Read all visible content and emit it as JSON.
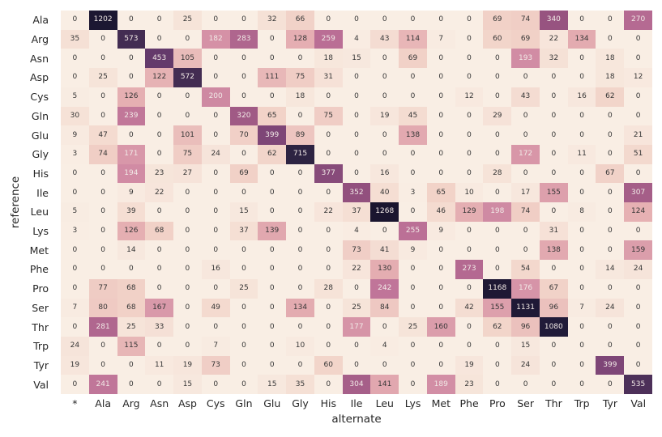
{
  "figure": {
    "background": "#ffffff"
  },
  "chart_data": {
    "type": "heatmap",
    "title": "",
    "xlabel": "alternate",
    "ylabel": "reference",
    "legend_position": "none",
    "grid": false,
    "annotated": true,
    "vmin": 0,
    "vmax": 1268,
    "x_categories": [
      "*",
      "Ala",
      "Arg",
      "Asn",
      "Asp",
      "Cys",
      "Gln",
      "Glu",
      "Gly",
      "His",
      "Ile",
      "Leu",
      "Lys",
      "Met",
      "Phe",
      "Pro",
      "Ser",
      "Thr",
      "Trp",
      "Tyr",
      "Val"
    ],
    "y_categories": [
      "Ala",
      "Arg",
      "Asn",
      "Asp",
      "Cys",
      "Gln",
      "Glu",
      "Gly",
      "His",
      "Ile",
      "Leu",
      "Lys",
      "Met",
      "Phe",
      "Pro",
      "Ser",
      "Thr",
      "Trp",
      "Tyr",
      "Val"
    ],
    "values": [
      [
        0,
        1202,
        0,
        0,
        25,
        0,
        0,
        32,
        66,
        0,
        0,
        0,
        0,
        0,
        0,
        69,
        74,
        340,
        0,
        0,
        270
      ],
      [
        35,
        0,
        573,
        0,
        0,
        182,
        283,
        0,
        128,
        259,
        4,
        43,
        114,
        7,
        0,
        60,
        69,
        22,
        134,
        0,
        0
      ],
      [
        0,
        0,
        0,
        453,
        105,
        0,
        0,
        0,
        0,
        18,
        15,
        0,
        69,
        0,
        0,
        0,
        193,
        32,
        0,
        18,
        0
      ],
      [
        0,
        25,
        0,
        122,
        572,
        0,
        0,
        111,
        75,
        31,
        0,
        0,
        0,
        0,
        0,
        0,
        0,
        0,
        0,
        18,
        12
      ],
      [
        5,
        0,
        126,
        0,
        0,
        200,
        0,
        0,
        18,
        0,
        0,
        0,
        0,
        0,
        12,
        0,
        43,
        0,
        16,
        62,
        0
      ],
      [
        30,
        0,
        239,
        0,
        0,
        0,
        320,
        65,
        0,
        75,
        0,
        19,
        45,
        0,
        0,
        29,
        0,
        0,
        0,
        0,
        0
      ],
      [
        9,
        47,
        0,
        0,
        101,
        0,
        70,
        399,
        89,
        0,
        0,
        0,
        138,
        0,
        0,
        0,
        0,
        0,
        0,
        0,
        21
      ],
      [
        3,
        74,
        171,
        0,
        75,
        24,
        0,
        62,
        715,
        0,
        0,
        0,
        0,
        0,
        0,
        0,
        172,
        0,
        11,
        0,
        51
      ],
      [
        0,
        0,
        194,
        23,
        27,
        0,
        69,
        0,
        0,
        377,
        0,
        16,
        0,
        0,
        0,
        28,
        0,
        0,
        0,
        67,
        0
      ],
      [
        0,
        0,
        9,
        22,
        0,
        0,
        0,
        0,
        0,
        0,
        352,
        40,
        3,
        65,
        10,
        0,
        17,
        155,
        0,
        0,
        307
      ],
      [
        5,
        0,
        39,
        0,
        0,
        0,
        15,
        0,
        0,
        22,
        37,
        1268,
        0,
        46,
        129,
        198,
        74,
        0,
        8,
        0,
        124
      ],
      [
        3,
        0,
        126,
        68,
        0,
        0,
        37,
        139,
        0,
        0,
        4,
        0,
        255,
        9,
        0,
        0,
        0,
        31,
        0,
        0,
        0
      ],
      [
        0,
        0,
        14,
        0,
        0,
        0,
        0,
        0,
        0,
        0,
        73,
        41,
        9,
        0,
        0,
        0,
        0,
        138,
        0,
        0,
        159
      ],
      [
        0,
        0,
        0,
        0,
        0,
        16,
        0,
        0,
        0,
        0,
        22,
        130,
        0,
        0,
        273,
        0,
        54,
        0,
        0,
        14,
        24
      ],
      [
        0,
        77,
        68,
        0,
        0,
        0,
        25,
        0,
        0,
        28,
        0,
        242,
        0,
        0,
        0,
        1168,
        176,
        67,
        0,
        0,
        0
      ],
      [
        7,
        80,
        68,
        167,
        0,
        49,
        0,
        0,
        134,
        0,
        25,
        84,
        0,
        0,
        42,
        155,
        1131,
        96,
        7,
        24,
        0
      ],
      [
        0,
        281,
        25,
        33,
        0,
        0,
        0,
        0,
        0,
        0,
        177,
        0,
        25,
        160,
        0,
        62,
        96,
        1080,
        0,
        0,
        0
      ],
      [
        24,
        0,
        115,
        0,
        0,
        7,
        0,
        0,
        10,
        0,
        0,
        4,
        0,
        0,
        0,
        0,
        15,
        0,
        0,
        0,
        0
      ],
      [
        19,
        0,
        0,
        11,
        19,
        73,
        0,
        0,
        0,
        60,
        0,
        0,
        0,
        0,
        19,
        0,
        24,
        0,
        0,
        399,
        0
      ],
      [
        0,
        241,
        0,
        0,
        15,
        0,
        0,
        15,
        35,
        0,
        304,
        141,
        0,
        189,
        23,
        0,
        0,
        0,
        0,
        0,
        535
      ]
    ],
    "colormap_stops": [
      [
        0.0,
        "#f9eee4"
      ],
      [
        0.05,
        "#f2d4c9"
      ],
      [
        0.1,
        "#e5afb2"
      ],
      [
        0.145,
        "#d490a6"
      ],
      [
        0.2,
        "#bc7096"
      ],
      [
        0.27,
        "#96527f"
      ],
      [
        0.315,
        "#7e4677"
      ],
      [
        0.36,
        "#62396a"
      ],
      [
        0.45,
        "#432c52"
      ],
      [
        0.56,
        "#2d2342"
      ],
      [
        0.85,
        "#211b39"
      ],
      [
        1.0,
        "#1a152f"
      ]
    ],
    "annotation_text_dark": "#363636",
    "annotation_text_light": "#f1e9e6",
    "tick_label_color": "#262626",
    "axis_label_color": "#262626"
  }
}
